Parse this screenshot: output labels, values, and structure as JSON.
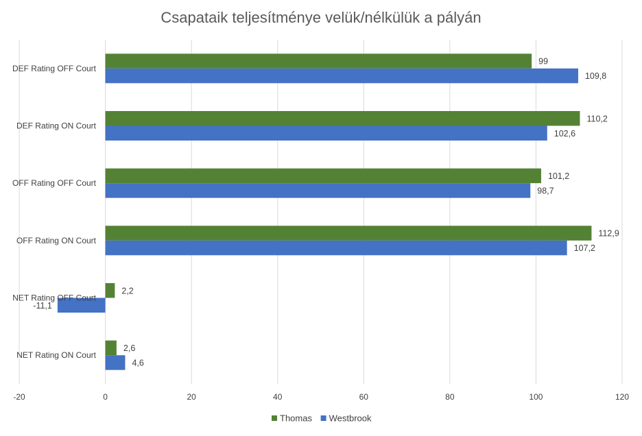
{
  "chart_data": {
    "type": "bar",
    "orientation": "horizontal",
    "title": "Csapataik teljesítménye velük/nélkülük a pályán",
    "categories": [
      "DEF Rating OFF Court",
      "DEF Rating ON Court",
      "OFF Rating OFF Court",
      "OFF Rating ON Court",
      "NET Rating OFF Court",
      "NET Rating ON Court"
    ],
    "series": [
      {
        "name": "Thomas",
        "color": "#548235",
        "values": [
          99,
          110.2,
          101.2,
          112.9,
          2.2,
          2.6
        ],
        "labels": [
          "99",
          "110,2",
          "101,2",
          "112,9",
          "2,2",
          "2,6"
        ]
      },
      {
        "name": "Westbrook",
        "color": "#4472C4",
        "values": [
          109.8,
          102.6,
          98.7,
          107.2,
          -11.1,
          4.6
        ],
        "labels": [
          "109,8",
          "102,6",
          "98,7",
          "107,2",
          "-11,1",
          "4,6"
        ]
      }
    ],
    "xlim": [
      -20,
      120
    ],
    "xticks": [
      "-20",
      "0",
      "20",
      "40",
      "60",
      "80",
      "100",
      "120"
    ],
    "grid": true,
    "legend_position": "bottom"
  }
}
